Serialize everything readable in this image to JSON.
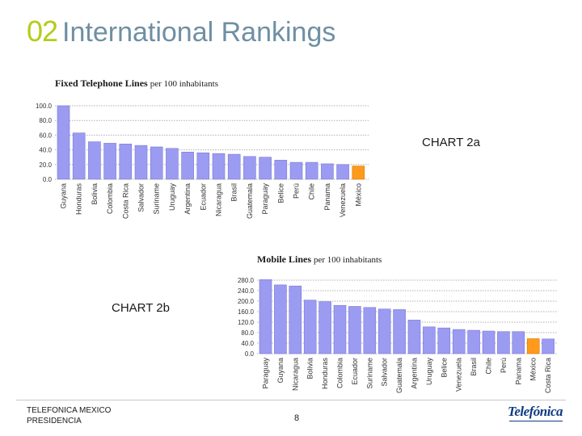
{
  "slide": {
    "number": "02",
    "title": "International Rankings",
    "footer_company": "TELEFONICA MEXICO",
    "footer_dept": "PRESIDENCIA",
    "page_number": "8",
    "logo_text": "Telefónica"
  },
  "colors": {
    "bar": "#9b9bf2",
    "bar_stroke": "#7a7ad8",
    "highlight": "#ff9a1c",
    "highlight_stroke": "#d97a00",
    "slide_number": "#b5cc18",
    "title": "#6f8fa3"
  },
  "chart_data": [
    {
      "type": "bar",
      "title": "Fixed Telephone Lines",
      "title_suffix": "per 100 inhabitants",
      "label": "CHART 2a",
      "categories": [
        "Guyana",
        "Honduras",
        "Bolivia",
        "Colombia",
        "Costa Rica",
        "Salvador",
        "Suriname",
        "Uruguay",
        "Argentina",
        "Ecuador",
        "Nicaragua",
        "Brasil",
        "Guatemala",
        "Paraguay",
        "Belice",
        "Perú",
        "Chile",
        "Panama",
        "Venezuela",
        "México"
      ],
      "values": [
        100,
        63,
        51,
        49,
        48,
        46,
        44,
        42,
        37,
        36,
        35,
        34,
        31,
        30,
        26,
        23,
        23,
        21,
        20,
        18
      ],
      "highlight": "México",
      "yticks": [
        "100.0",
        "80.0",
        "60.0",
        "40.0",
        "20.0",
        "0.0"
      ],
      "ylim": [
        0,
        100
      ],
      "grid": true
    },
    {
      "type": "bar",
      "title": "Mobile Lines",
      "title_suffix": "per 100 inhabitants",
      "label": "CHART 2b",
      "categories": [
        "Paraguay",
        "Guyana",
        "Nicaragua",
        "Bolivia",
        "Honduras",
        "Colombia",
        "Ecuador",
        "Suriname",
        "Salvador",
        "Guatemala",
        "Argentina",
        "Uruguay",
        "Belice",
        "Venezuela",
        "Brasil",
        "Chile",
        "Perú",
        "Panama",
        "México",
        "Costa Rica"
      ],
      "values": [
        282,
        262,
        258,
        204,
        198,
        184,
        180,
        176,
        170,
        168,
        128,
        102,
        98,
        92,
        89,
        86,
        84,
        84,
        57,
        56
      ],
      "highlight": "México",
      "yticks": [
        "280.0",
        "240.0",
        "200.0",
        "160.0",
        "120.0",
        "80.0",
        "40.0",
        "0.0"
      ],
      "ylim": [
        0,
        280
      ],
      "grid": true
    }
  ]
}
